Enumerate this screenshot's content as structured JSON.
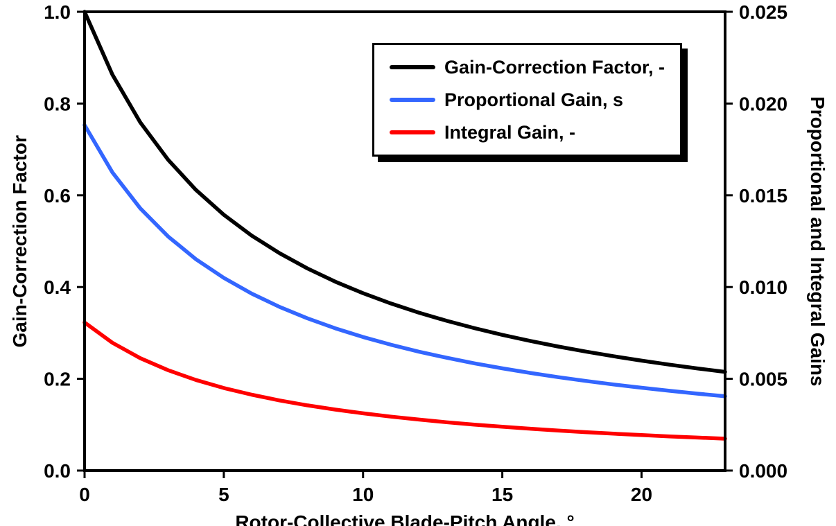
{
  "chart_data": {
    "type": "line",
    "title": "",
    "xlabel": "Rotor-Collective Blade-Pitch Angle, °",
    "ylabel_left": "Gain-Correction Factor",
    "ylabel_right": "Proportional and Integral Gains",
    "grid": false,
    "legend_position": "top-center",
    "frame_color": "#000000",
    "background": "#ffffff",
    "xlim": [
      0,
      23
    ],
    "ylim_left": [
      0.0,
      1.0
    ],
    "ylim_right": [
      0.0,
      0.025
    ],
    "x_ticks": [
      {
        "v": 0,
        "label": "0"
      },
      {
        "v": 5,
        "label": "5"
      },
      {
        "v": 10,
        "label": "10"
      },
      {
        "v": 15,
        "label": "15"
      },
      {
        "v": 20,
        "label": "20"
      }
    ],
    "y_ticks_left": [
      {
        "v": 1.0,
        "label": "1.0"
      },
      {
        "v": 0.8,
        "label": "0.8"
      },
      {
        "v": 0.6,
        "label": "0.6"
      },
      {
        "v": 0.4,
        "label": "0.4"
      },
      {
        "v": 0.2,
        "label": "0.2"
      },
      {
        "v": 0.0,
        "label": "0.0"
      }
    ],
    "y_ticks_right": [
      {
        "v": 0.025,
        "label": "0.025"
      },
      {
        "v": 0.02,
        "label": "0.020"
      },
      {
        "v": 0.015,
        "label": "0.015"
      },
      {
        "v": 0.01,
        "label": "0.010"
      },
      {
        "v": 0.005,
        "label": "0.005"
      },
      {
        "v": 0.0,
        "label": "0.000"
      }
    ],
    "x": [
      0,
      1,
      2,
      3,
      4,
      5,
      6,
      7,
      8,
      9,
      10,
      11,
      12,
      13,
      14,
      15,
      16,
      17,
      18,
      19,
      20,
      21,
      22,
      23
    ],
    "series": [
      {
        "id": "gain-correction-factor",
        "name": "Gain-Correction Factor, -",
        "color": "#000000",
        "axis": "left",
        "values": [
          1.0,
          0.863,
          0.7591,
          0.6775,
          0.6117,
          0.5576,
          0.5123,
          0.4738,
          0.4406,
          0.4118,
          0.3866,
          0.3642,
          0.3443,
          0.3265,
          0.3104,
          0.2958,
          0.2826,
          0.2704,
          0.2593,
          0.2491,
          0.2396,
          0.2308,
          0.2227,
          0.2151
        ]
      },
      {
        "id": "proportional-gain",
        "name": "Proportional Gain, s",
        "color": "#3366ff",
        "axis": "right",
        "values": [
          0.018827,
          0.016247,
          0.014291,
          0.012755,
          0.011516,
          0.010498,
          0.009645,
          0.00892,
          0.008295,
          0.007753,
          0.007279,
          0.006857,
          0.006482,
          0.006147,
          0.005844,
          0.005569,
          0.00532,
          0.005091,
          0.004882,
          0.00469,
          0.004511,
          0.004345,
          0.004193,
          0.00405
        ]
      },
      {
        "id": "integral-gain",
        "name": "Integral Gain, -",
        "color": "#ff0000",
        "axis": "right",
        "values": [
          0.008069,
          0.006963,
          0.006125,
          0.005467,
          0.004936,
          0.004499,
          0.004134,
          0.003823,
          0.003555,
          0.003323,
          0.003119,
          0.002939,
          0.002778,
          0.002634,
          0.002504,
          0.002387,
          0.00228,
          0.002182,
          0.002092,
          0.00201,
          0.001933,
          0.001862,
          0.001797,
          0.001736
        ]
      }
    ]
  }
}
